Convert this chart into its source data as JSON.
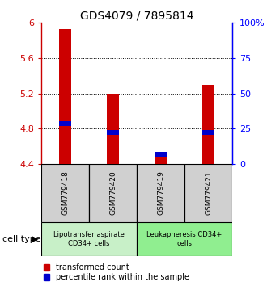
{
  "title": "GDS4079 / 7895814",
  "samples": [
    "GSM779418",
    "GSM779420",
    "GSM779419",
    "GSM779421"
  ],
  "red_values": [
    5.93,
    5.2,
    4.54,
    5.3
  ],
  "blue_values": [
    4.855,
    4.755,
    4.51,
    4.76
  ],
  "ymin": 4.4,
  "ymax": 6.0,
  "yticks": [
    4.4,
    4.8,
    5.2,
    5.6,
    6.0
  ],
  "ytick_labels": [
    "4.4",
    "4.8",
    "5.2",
    "5.6",
    "6"
  ],
  "right_ytick_labels": [
    "0",
    "25",
    "50",
    "75",
    "100%"
  ],
  "right_ytick_pcts": [
    0,
    25,
    50,
    75,
    100
  ],
  "group1_label": "Lipotransfer aspirate\nCD34+ cells",
  "group2_label": "Leukapheresis CD34+\ncells",
  "cell_type_label": "cell type",
  "legend_red": "transformed count",
  "legend_blue": "percentile rank within the sample",
  "bar_width": 0.25,
  "red_color": "#cc0000",
  "blue_color": "#0000cc",
  "group1_color": "#c8f0c8",
  "group2_color": "#90ee90",
  "sample_box_color": "#d0d0d0",
  "title_fontsize": 10,
  "axis_fontsize": 8,
  "sample_fontsize": 6.5,
  "group_fontsize": 6,
  "legend_fontsize": 7
}
